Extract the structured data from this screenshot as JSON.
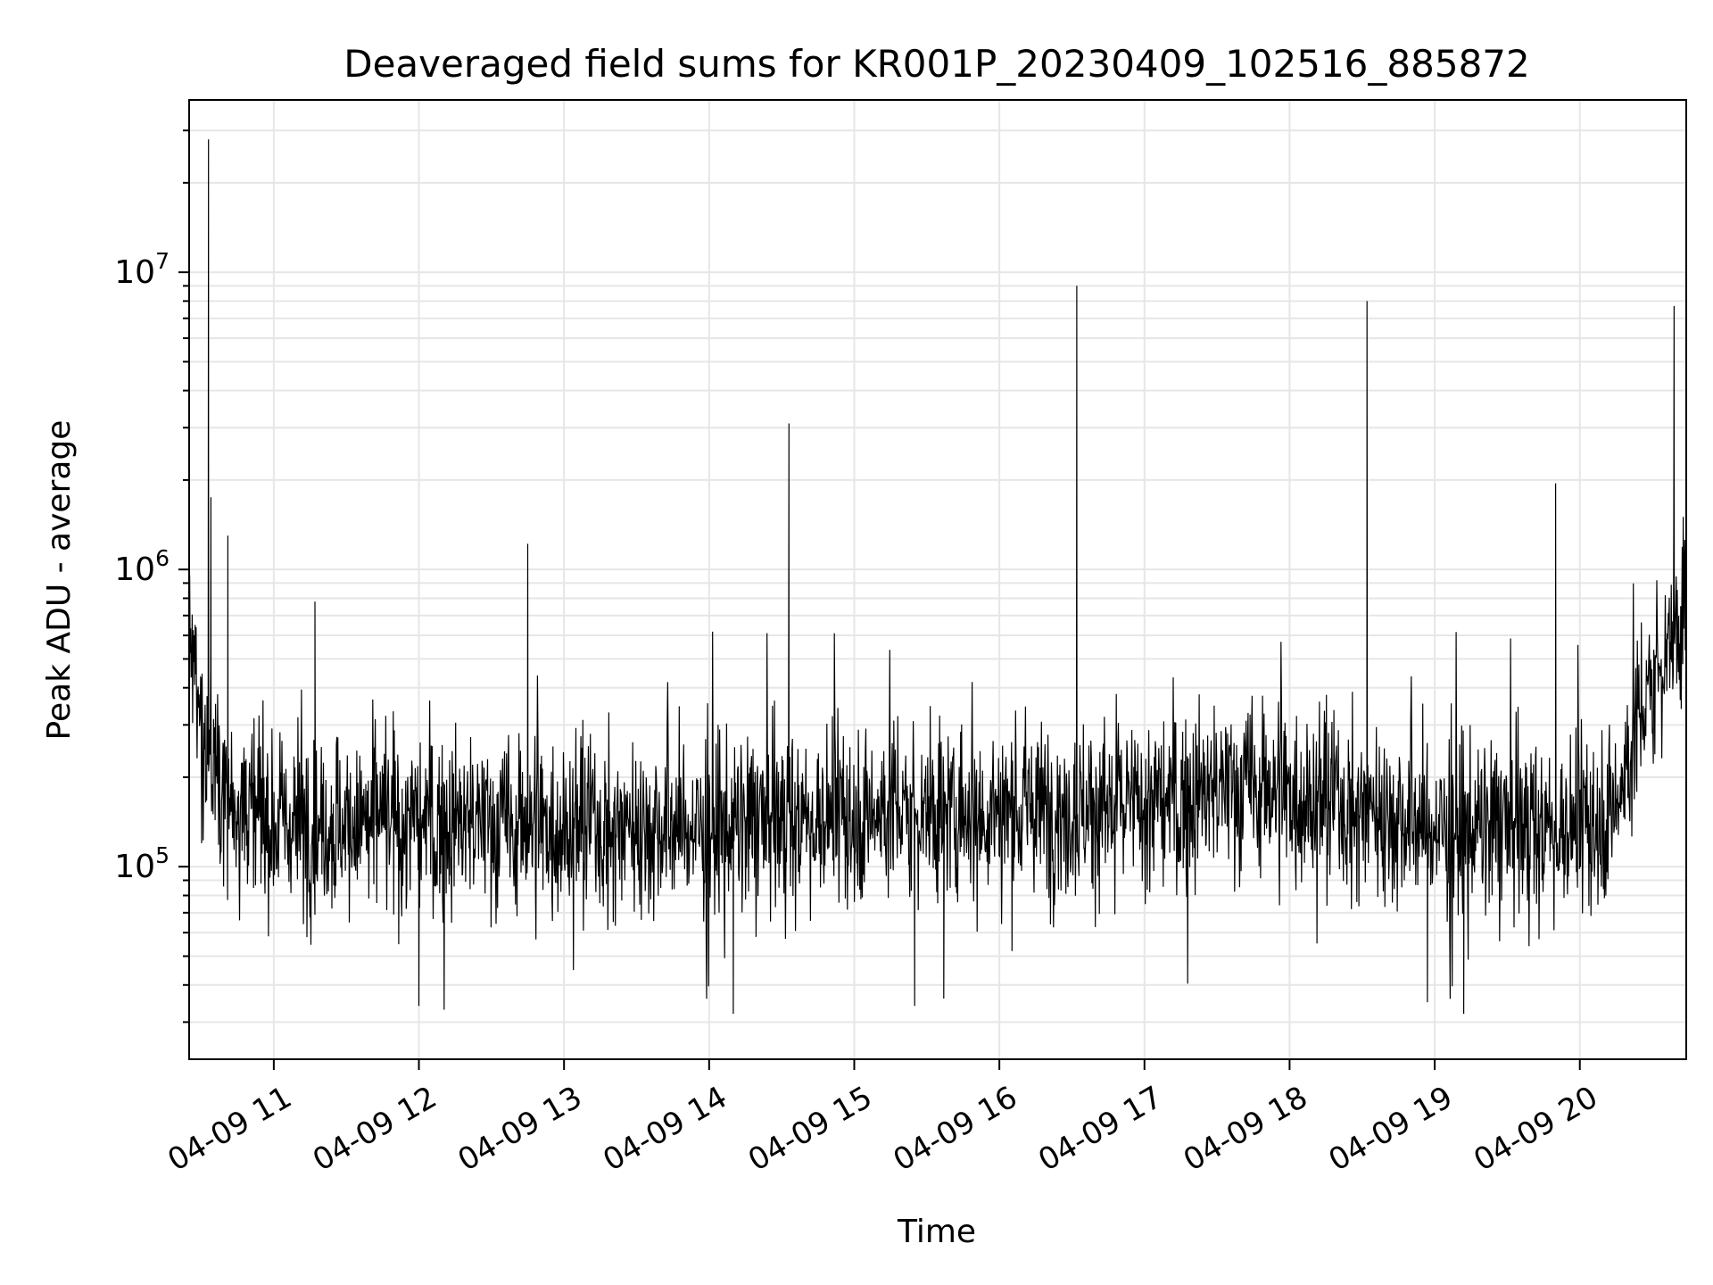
{
  "chart_data": {
    "type": "line",
    "title": "Deaveraged field sums for KR001P_20230409_102516_885872",
    "xlabel": "Time",
    "ylabel": "Peak ADU - average",
    "yscale": "log",
    "xlim": [
      "2023-04-09 10:25",
      "2023-04-09 20:44"
    ],
    "ylim": [
      22500,
      38000000
    ],
    "grid": true,
    "colors": {
      "line": "#000000",
      "grid": "#e6e6e6",
      "axes": "#000000",
      "background": "#ffffff"
    },
    "x_ticks": [
      "04-09 11",
      "04-09 12",
      "04-09 13",
      "04-09 14",
      "04-09 15",
      "04-09 16",
      "04-09 17",
      "04-09 18",
      "04-09 19",
      "04-09 20"
    ],
    "y_ticks": [
      {
        "base": "10",
        "exp": "5",
        "value": 100000
      },
      {
        "base": "10",
        "exp": "6",
        "value": 1000000
      },
      {
        "base": "10",
        "exp": "7",
        "value": 10000000
      }
    ],
    "baseline": {
      "x": [
        "2023-04-09 10:25",
        "2023-04-09 10:30",
        "2023-04-09 10:40",
        "2023-04-09 11:00",
        "2023-04-09 12:00",
        "2023-04-09 13:00",
        "2023-04-09 14:00",
        "2023-04-09 15:00",
        "2023-04-09 16:00",
        "2023-04-09 17:00",
        "2023-04-09 17:45",
        "2023-04-09 18:30",
        "2023-04-09 19:00",
        "2023-04-09 20:00",
        "2023-04-09 20:15",
        "2023-04-09 20:30",
        "2023-04-09 20:44"
      ],
      "y": [
        550000,
        280000,
        180000,
        140000,
        140000,
        140000,
        135000,
        150000,
        155000,
        160000,
        190000,
        160000,
        135000,
        135000,
        160000,
        420000,
        750000
      ]
    },
    "spikes": {
      "x": [
        "2023-04-09 10:33",
        "2023-04-09 10:34",
        "2023-04-09 10:41",
        "2023-04-09 11:17",
        "2023-04-09 12:45",
        "2023-04-09 14:33",
        "2023-04-09 16:32",
        "2023-04-09 18:32",
        "2023-04-09 19:50",
        "2023-04-09 20:39"
      ],
      "y": [
        28000000,
        1750000,
        1300000,
        780000,
        1220000,
        3100000,
        9000000,
        8000000,
        1950000,
        7700000
      ]
    },
    "dips": {
      "x": [
        "2023-04-09 12:00",
        "2023-04-09 14:10",
        "2023-04-09 15:25",
        "2023-04-09 15:37",
        "2023-04-09 18:57",
        "2023-04-09 19:12"
      ],
      "y": [
        34000,
        32000,
        34000,
        36000,
        35000,
        32000
      ]
    }
  }
}
